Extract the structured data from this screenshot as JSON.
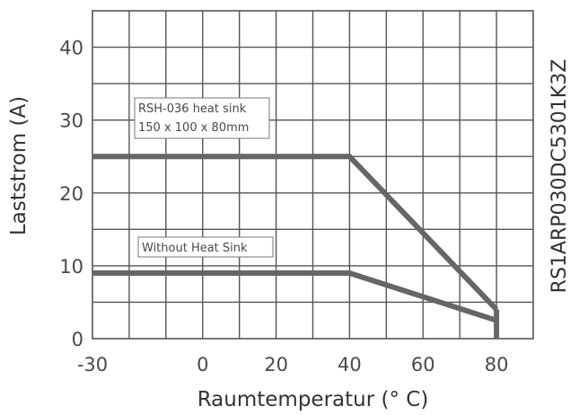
{
  "chart_data": {
    "type": "line",
    "title": "",
    "xlabel": "Raumtemperatur (° C)",
    "ylabel": "Laststrom (A)",
    "side_label": "RS1ARP030DC5301K3Z",
    "xlim": [
      -30,
      90
    ],
    "ylim": [
      0,
      45
    ],
    "x_ticks": [
      -30,
      0,
      20,
      40,
      60,
      80
    ],
    "x_tick_labels": [
      "-30",
      "0",
      "20",
      "40",
      "60",
      "80"
    ],
    "y_ticks": [
      0,
      10,
      20,
      30,
      40
    ],
    "y_tick_labels": [
      "0",
      "10",
      "20",
      "30",
      "40"
    ],
    "grid": true,
    "series": [
      {
        "annotation": [
          "RSH-036 heat sink",
          "150 x 100 x 80mm"
        ],
        "points": [
          [
            -30,
            25
          ],
          [
            40,
            25
          ],
          [
            80,
            4
          ]
        ]
      },
      {
        "annotation": [
          "Without Heat Sink"
        ],
        "points": [
          [
            -30,
            9
          ],
          [
            40,
            9
          ],
          [
            80,
            2.5
          ]
        ]
      }
    ],
    "drop_line": {
      "x": 80,
      "from": 4,
      "to": 0
    },
    "line_color": "#666666"
  }
}
